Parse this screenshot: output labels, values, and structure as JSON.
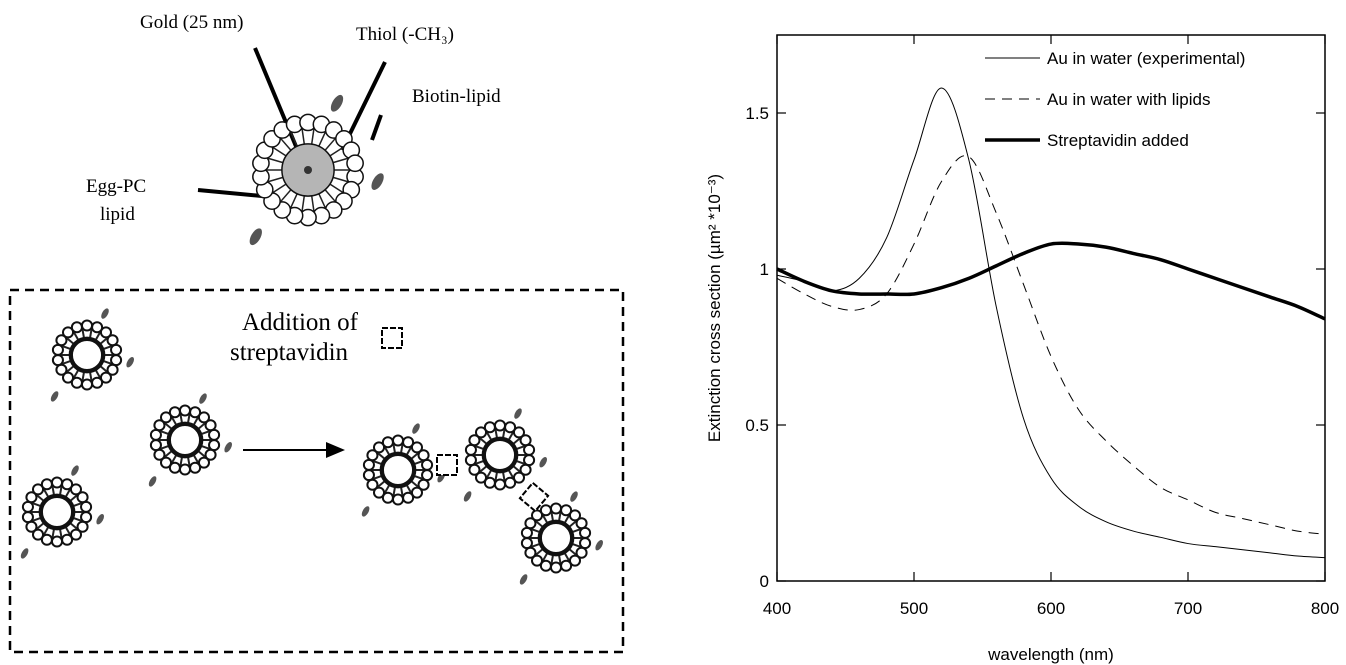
{
  "diagram": {
    "labels": {
      "gold": "Gold (25 nm)",
      "thiol": "Thiol (-CH₃)",
      "biotin": "Biotin-lipid",
      "egg_pc": "Egg-PC",
      "egg_pc_2": "lipid",
      "addition": "Addition of",
      "addition_2": "streptavidin"
    }
  },
  "chart_data": {
    "type": "line",
    "xlabel": "wavelength (nm)",
    "ylabel": "Extinction cross section  (µm² *10⁻³)",
    "x": [
      400,
      420,
      440,
      460,
      480,
      500,
      520,
      540,
      560,
      580,
      600,
      620,
      640,
      660,
      680,
      700,
      720,
      740,
      760,
      780,
      800
    ],
    "xlim": [
      400,
      800
    ],
    "ylim": [
      0,
      1.75
    ],
    "xticks": [
      400,
      500,
      600,
      700,
      800
    ],
    "yticks": [
      0,
      0.5,
      1,
      1.5
    ],
    "legend": "upper right",
    "series": [
      {
        "name": "Au in water (experimental)",
        "color": "#000000",
        "linestyle": "solid",
        "linewidth": 1,
        "values": [
          0.98,
          0.96,
          0.93,
          0.97,
          1.1,
          1.35,
          1.58,
          1.35,
          0.88,
          0.52,
          0.33,
          0.24,
          0.19,
          0.16,
          0.14,
          0.12,
          0.11,
          0.1,
          0.09,
          0.08,
          0.075
        ]
      },
      {
        "name": "Au in water with lipids",
        "color": "#000000",
        "linestyle": "dashed",
        "linewidth": 1,
        "values": [
          0.97,
          0.92,
          0.88,
          0.87,
          0.92,
          1.08,
          1.28,
          1.36,
          1.18,
          0.95,
          0.72,
          0.55,
          0.45,
          0.37,
          0.3,
          0.26,
          0.22,
          0.2,
          0.18,
          0.16,
          0.15
        ]
      },
      {
        "name": "Streptavidin added",
        "color": "#000000",
        "linestyle": "solid",
        "linewidth": 3.5,
        "values": [
          1.0,
          0.96,
          0.93,
          0.92,
          0.92,
          0.92,
          0.94,
          0.97,
          1.01,
          1.05,
          1.08,
          1.08,
          1.07,
          1.05,
          1.03,
          1.0,
          0.97,
          0.94,
          0.91,
          0.88,
          0.84
        ]
      }
    ]
  }
}
